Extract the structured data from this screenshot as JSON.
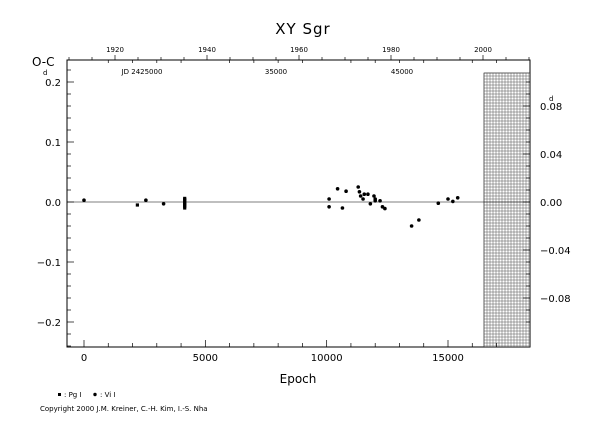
{
  "chart_data": {
    "type": "scatter",
    "title": "XY Sgr",
    "xlabel": "Epoch",
    "ylabel": "O-C",
    "ylabel_exponent": "d",
    "right_axis_exponent": "d",
    "xlim": [
      -1500,
      17500
    ],
    "ylim": [
      -0.24,
      0.22
    ],
    "x_ticks": [
      "0",
      "5000",
      "10000",
      "15000"
    ],
    "y_ticks": [
      "0.2",
      "0.1",
      "0.0",
      "−0.1",
      "−0.2"
    ],
    "top_axis": {
      "year_ticks": [
        "1920",
        "1940",
        "1960",
        "1980",
        "2000"
      ],
      "jd_ticks": [
        "JD 2425000",
        "35000",
        "45000"
      ]
    },
    "right_axis": {
      "ticks": [
        "0.08",
        "0.04",
        "0.00",
        "−0.04",
        "−0.08"
      ]
    },
    "legend": [
      {
        "symbol": "square",
        "label": ": Pg I"
      },
      {
        "symbol": "circle",
        "label": ": Vi I"
      }
    ],
    "series": [
      {
        "symbol": "square",
        "points": [
          [
            2200,
            -0.005
          ],
          [
            4150,
            0.006
          ],
          [
            4150,
            0.004
          ],
          [
            4150,
            0.002
          ],
          [
            4150,
            -0.001
          ],
          [
            4150,
            -0.003
          ],
          [
            4150,
            -0.005
          ],
          [
            4150,
            -0.007
          ],
          [
            4150,
            -0.01
          ]
        ]
      },
      {
        "symbol": "circle",
        "points": [
          [
            0,
            0.003
          ],
          [
            2550,
            0.003
          ],
          [
            3280,
            -0.003
          ],
          [
            10100,
            0.005
          ],
          [
            10100,
            -0.008
          ],
          [
            10450,
            0.022
          ],
          [
            10650,
            -0.01
          ],
          [
            10800,
            0.018
          ],
          [
            11300,
            0.025
          ],
          [
            11350,
            0.017
          ],
          [
            11400,
            0.01
          ],
          [
            11500,
            0.005
          ],
          [
            11550,
            0.013
          ],
          [
            11700,
            0.013
          ],
          [
            11800,
            -0.003
          ],
          [
            11950,
            0.01
          ],
          [
            12000,
            0.005
          ],
          [
            12000,
            0.002
          ],
          [
            12200,
            0.002
          ],
          [
            12300,
            -0.008
          ],
          [
            12400,
            -0.011
          ],
          [
            13500,
            -0.04
          ],
          [
            13800,
            -0.03
          ],
          [
            14600,
            -0.002
          ],
          [
            15000,
            0.005
          ],
          [
            15200,
            0.001
          ],
          [
            15400,
            0.007
          ]
        ]
      }
    ],
    "grid": false
  },
  "footer": {
    "copyright": "Copyright 2000 J.M. Kreiner, C.-H. Kim, I.-S. Nha"
  }
}
